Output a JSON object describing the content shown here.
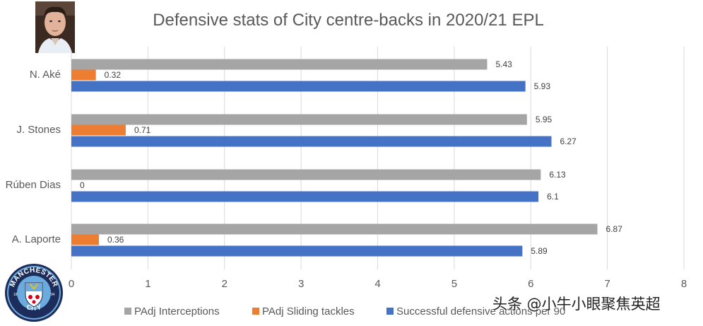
{
  "chart_data": {
    "type": "bar",
    "orientation": "horizontal",
    "title": "Defensive stats of City centre-backs in 2020/21 EPL",
    "categories": [
      "N. Aké",
      "J. Stones",
      "Rúben Dias",
      "A. Laporte"
    ],
    "series": [
      {
        "name": "PAdj Interceptions",
        "color": "#a5a5a5",
        "values": [
          5.43,
          5.95,
          6.13,
          6.87
        ],
        "labels": [
          "5.43",
          "5.95",
          "6.13",
          "6.87"
        ]
      },
      {
        "name": "PAdj Sliding tackles",
        "color": "#ed7d31",
        "values": [
          0.32,
          0.71,
          0,
          0.36
        ],
        "labels": [
          "0.32",
          "0.71",
          "0",
          "0.36"
        ]
      },
      {
        "name": "Successful defensive actions per 90",
        "color": "#4472c4",
        "values": [
          5.93,
          6.27,
          6.1,
          5.89
        ],
        "labels": [
          "5.93",
          "6.27",
          "6.1",
          "5.89"
        ]
      }
    ],
    "xlim": [
      0,
      8
    ],
    "xticks": [
      "0",
      "1",
      "2",
      "3",
      "4",
      "5",
      "6",
      "7",
      "8"
    ],
    "grid": true,
    "legend_position": "bottom"
  },
  "badge": {
    "top_text": "MANCHESTER",
    "bottom_text": "CITY",
    "year_left": "18",
    "year_right": "94"
  },
  "watermark": "头条 @小牛小眼聚焦英超"
}
